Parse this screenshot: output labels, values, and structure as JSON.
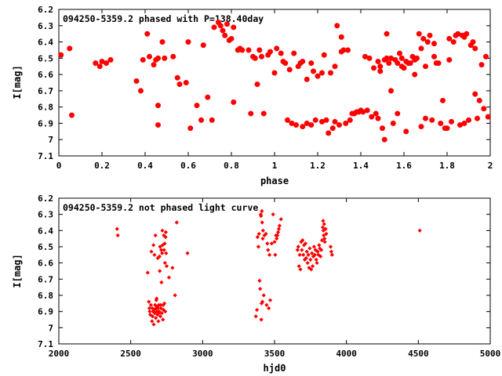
{
  "colors": {
    "points": "#ff0000",
    "axes": "#000000",
    "background": "#ffffff"
  },
  "chart_data": [
    {
      "type": "scatter",
      "title": "094250-5359.2 phased with P=138.40day",
      "xlabel": "phase",
      "ylabel": "I[mag]",
      "xlim": [
        0,
        2
      ],
      "ylim": [
        7.1,
        6.2
      ],
      "y_inverted": true,
      "grid": false,
      "marker": "star",
      "xticks": [
        "0",
        "0.2",
        "0.4",
        "0.6",
        "0.8",
        "1",
        "1.2",
        "1.4",
        "1.6",
        "1.8",
        "2"
      ],
      "yticks": [
        "6.2",
        "6.3",
        "6.4",
        "6.5",
        "6.6",
        "6.7",
        "6.8",
        "6.9",
        "7",
        "7.1"
      ],
      "points": [
        [
          0.01,
          6.48
        ],
        [
          0.05,
          6.44
        ],
        [
          0.06,
          6.85
        ],
        [
          0.17,
          6.53
        ],
        [
          0.19,
          6.55
        ],
        [
          0.2,
          6.52
        ],
        [
          0.22,
          6.53
        ],
        [
          0.24,
          6.51
        ],
        [
          0.36,
          6.64
        ],
        [
          0.38,
          6.7
        ],
        [
          0.39,
          6.51
        ],
        [
          0.41,
          6.35
        ],
        [
          0.42,
          6.49
        ],
        [
          0.44,
          6.54
        ],
        [
          0.45,
          6.51
        ],
        [
          0.46,
          6.5
        ],
        [
          0.46,
          6.79
        ],
        [
          0.46,
          6.91
        ],
        [
          0.48,
          6.4
        ],
        [
          0.49,
          6.5
        ],
        [
          0.53,
          6.49
        ],
        [
          0.55,
          6.62
        ],
        [
          0.56,
          6.66
        ],
        [
          0.59,
          6.65
        ],
        [
          0.6,
          6.4
        ],
        [
          0.61,
          6.93
        ],
        [
          0.64,
          6.79
        ],
        [
          0.66,
          6.88
        ],
        [
          0.67,
          6.42
        ],
        [
          0.69,
          6.74
        ],
        [
          0.71,
          6.88
        ],
        [
          0.72,
          6.31
        ],
        [
          0.74,
          6.28
        ],
        [
          0.75,
          6.3
        ],
        [
          0.76,
          6.33
        ],
        [
          0.77,
          6.36
        ],
        [
          0.78,
          6.29
        ],
        [
          0.79,
          6.39
        ],
        [
          0.8,
          6.38
        ],
        [
          0.81,
          6.31
        ],
        [
          0.81,
          6.77
        ],
        [
          0.83,
          6.45
        ],
        [
          0.84,
          6.44
        ],
        [
          0.85,
          6.45
        ],
        [
          0.88,
          6.45
        ],
        [
          0.89,
          6.84
        ],
        [
          0.9,
          6.49
        ],
        [
          0.91,
          6.5
        ],
        [
          0.92,
          6.66
        ],
        [
          0.93,
          6.45
        ],
        [
          0.94,
          6.49
        ],
        [
          0.95,
          6.84
        ],
        [
          0.97,
          6.48
        ],
        [
          0.98,
          6.46
        ],
        [
          1.0,
          6.59
        ],
        [
          1.01,
          6.44
        ],
        [
          1.03,
          6.47
        ],
        [
          1.04,
          6.52
        ],
        [
          1.05,
          6.53
        ],
        [
          1.06,
          6.88
        ],
        [
          1.07,
          6.57
        ],
        [
          1.08,
          6.9
        ],
        [
          1.09,
          6.47
        ],
        [
          1.1,
          6.91
        ],
        [
          1.11,
          6.55
        ],
        [
          1.12,
          6.53
        ],
        [
          1.13,
          6.52
        ],
        [
          1.13,
          6.92
        ],
        [
          1.15,
          6.9
        ],
        [
          1.15,
          6.63
        ],
        [
          1.17,
          6.53
        ],
        [
          1.17,
          6.91
        ],
        [
          1.18,
          6.58
        ],
        [
          1.19,
          6.88
        ],
        [
          1.2,
          6.61
        ],
        [
          1.22,
          6.59
        ],
        [
          1.22,
          6.89
        ],
        [
          1.23,
          6.48
        ],
        [
          1.24,
          6.88
        ],
        [
          1.25,
          6.96
        ],
        [
          1.26,
          6.59
        ],
        [
          1.27,
          6.93
        ],
        [
          1.28,
          6.55
        ],
        [
          1.28,
          6.89
        ],
        [
          1.29,
          6.3
        ],
        [
          1.3,
          6.91
        ],
        [
          1.31,
          6.46
        ],
        [
          1.31,
          6.37
        ],
        [
          1.32,
          6.45
        ],
        [
          1.33,
          6.9
        ],
        [
          1.34,
          6.45
        ],
        [
          1.35,
          6.88
        ],
        [
          1.36,
          6.84
        ],
        [
          1.37,
          6.84
        ],
        [
          1.38,
          6.83
        ],
        [
          1.39,
          6.83
        ],
        [
          1.4,
          6.82
        ],
        [
          1.41,
          6.83
        ],
        [
          1.42,
          6.49
        ],
        [
          1.43,
          6.82
        ],
        [
          1.44,
          6.5
        ],
        [
          1.45,
          6.86
        ],
        [
          1.46,
          6.56
        ],
        [
          1.47,
          6.84
        ],
        [
          1.48,
          6.52
        ],
        [
          1.48,
          6.87
        ],
        [
          1.49,
          6.55
        ],
        [
          1.49,
          6.58
        ],
        [
          1.5,
          6.93
        ],
        [
          1.51,
          7.0
        ],
        [
          1.51,
          6.51
        ],
        [
          1.52,
          6.5
        ],
        [
          1.52,
          6.35
        ],
        [
          1.53,
          6.53
        ],
        [
          1.54,
          6.5
        ],
        [
          1.54,
          6.7
        ],
        [
          1.55,
          6.9
        ],
        [
          1.56,
          6.51
        ],
        [
          1.57,
          6.84
        ],
        [
          1.57,
          6.53
        ],
        [
          1.58,
          6.47
        ],
        [
          1.59,
          6.55
        ],
        [
          1.59,
          6.5
        ],
        [
          1.6,
          6.56
        ],
        [
          1.61,
          6.95
        ],
        [
          1.61,
          6.52
        ],
        [
          1.62,
          6.53
        ],
        [
          1.63,
          6.53
        ],
        [
          1.64,
          6.49
        ],
        [
          1.65,
          6.51
        ],
        [
          1.65,
          6.6
        ],
        [
          1.66,
          6.5
        ],
        [
          1.67,
          6.35
        ],
        [
          1.68,
          6.44
        ],
        [
          1.68,
          6.92
        ],
        [
          1.69,
          6.38
        ],
        [
          1.7,
          6.55
        ],
        [
          1.7,
          6.87
        ],
        [
          1.71,
          6.4
        ],
        [
          1.72,
          6.36
        ],
        [
          1.73,
          6.88
        ],
        [
          1.74,
          6.49
        ],
        [
          1.74,
          6.41
        ],
        [
          1.75,
          6.53
        ],
        [
          1.76,
          6.53
        ],
        [
          1.77,
          6.9
        ],
        [
          1.78,
          6.76
        ],
        [
          1.79,
          6.93
        ],
        [
          1.8,
          6.93
        ],
        [
          1.81,
          6.38
        ],
        [
          1.81,
          6.51
        ],
        [
          1.82,
          6.89
        ],
        [
          1.83,
          6.4
        ],
        [
          1.84,
          6.36
        ],
        [
          1.85,
          6.35
        ],
        [
          1.86,
          6.91
        ],
        [
          1.87,
          6.36
        ],
        [
          1.88,
          6.37
        ],
        [
          1.88,
          6.9
        ],
        [
          1.89,
          6.35
        ],
        [
          1.9,
          6.88
        ],
        [
          1.91,
          6.42
        ],
        [
          1.92,
          6.4
        ],
        [
          1.93,
          6.44
        ],
        [
          1.93,
          6.72
        ],
        [
          1.94,
          6.87
        ],
        [
          1.95,
          6.76
        ],
        [
          1.96,
          6.54
        ],
        [
          1.97,
          6.81
        ],
        [
          1.98,
          6.49
        ],
        [
          1.99,
          6.86
        ]
      ]
    },
    {
      "type": "scatter",
      "title": "094250-5359.2 not phased light curve",
      "xlabel": "hjd0",
      "ylabel": "I[mag]",
      "xlim": [
        2000,
        5000
      ],
      "ylim": [
        7.1,
        6.2
      ],
      "y_inverted": true,
      "grid": false,
      "marker": "diamond",
      "xticks": [
        "2000",
        "2500",
        "3000",
        "3500",
        "4000",
        "4500",
        "5000"
      ],
      "yticks": [
        "6.2",
        "6.3",
        "6.4",
        "6.5",
        "6.6",
        "6.7",
        "6.8",
        "6.9",
        "7",
        "7.1"
      ],
      "points": [
        [
          2405,
          6.39
        ],
        [
          2410,
          6.43
        ],
        [
          2618,
          6.66
        ],
        [
          2626,
          6.84
        ],
        [
          2630,
          6.88
        ],
        [
          2632,
          6.9
        ],
        [
          2636,
          6.92
        ],
        [
          2640,
          6.86
        ],
        [
          2644,
          6.53
        ],
        [
          2648,
          6.96
        ],
        [
          2650,
          6.88
        ],
        [
          2652,
          6.93
        ],
        [
          2655,
          6.9
        ],
        [
          2658,
          6.49
        ],
        [
          2660,
          6.98
        ],
        [
          2662,
          6.89
        ],
        [
          2665,
          6.55
        ],
        [
          2667,
          6.91
        ],
        [
          2670,
          6.86
        ],
        [
          2672,
          6.43
        ],
        [
          2674,
          6.94
        ],
        [
          2676,
          6.88
        ],
        [
          2678,
          6.83
        ],
        [
          2680,
          6.82
        ],
        [
          2682,
          6.9
        ],
        [
          2684,
          6.87
        ],
        [
          2686,
          6.92
        ],
        [
          2688,
          6.57
        ],
        [
          2690,
          6.88
        ],
        [
          2692,
          6.96
        ],
        [
          2694,
          6.91
        ],
        [
          2696,
          6.86
        ],
        [
          2698,
          6.9
        ],
        [
          2700,
          6.56
        ],
        [
          2702,
          6.65
        ],
        [
          2704,
          6.5
        ],
        [
          2706,
          6.93
        ],
        [
          2708,
          6.86
        ],
        [
          2710,
          6.88
        ],
        [
          2712,
          6.52
        ],
        [
          2714,
          6.72
        ],
        [
          2716,
          6.91
        ],
        [
          2718,
          6.54
        ],
        [
          2720,
          6.4
        ],
        [
          2722,
          6.49
        ],
        [
          2724,
          6.95
        ],
        [
          2726,
          6.86
        ],
        [
          2728,
          6.89
        ],
        [
          2730,
          6.43
        ],
        [
          2732,
          6.52
        ],
        [
          2734,
          6.85
        ],
        [
          2736,
          6.48
        ],
        [
          2738,
          6.6
        ],
        [
          2740,
          6.9
        ],
        [
          2742,
          6.44
        ],
        [
          2744,
          6.41
        ],
        [
          2746,
          6.54
        ],
        [
          2750,
          6.62
        ],
        [
          2766,
          6.69
        ],
        [
          2790,
          6.63
        ],
        [
          2808,
          6.8
        ],
        [
          2820,
          6.35
        ],
        [
          2895,
          6.54
        ],
        [
          3370,
          6.93
        ],
        [
          3378,
          6.89
        ],
        [
          3382,
          6.44
        ],
        [
          3388,
          6.5
        ],
        [
          3392,
          6.42
        ],
        [
          3396,
          6.71
        ],
        [
          3400,
          6.76
        ],
        [
          3404,
          6.3
        ],
        [
          3406,
          6.31
        ],
        [
          3408,
          6.95
        ],
        [
          3410,
          6.85
        ],
        [
          3412,
          6.28
        ],
        [
          3414,
          6.35
        ],
        [
          3416,
          6.84
        ],
        [
          3418,
          6.45
        ],
        [
          3420,
          6.4
        ],
        [
          3425,
          6.8
        ],
        [
          3430,
          6.43
        ],
        [
          3440,
          6.42
        ],
        [
          3445,
          6.86
        ],
        [
          3450,
          6.48
        ],
        [
          3455,
          6.52
        ],
        [
          3460,
          6.88
        ],
        [
          3465,
          6.55
        ],
        [
          3470,
          6.83
        ],
        [
          3480,
          6.48
        ],
        [
          3490,
          6.3
        ],
        [
          3500,
          6.47
        ],
        [
          3505,
          6.55
        ],
        [
          3510,
          6.43
        ],
        [
          3515,
          6.45
        ],
        [
          3520,
          6.43
        ],
        [
          3525,
          6.41
        ],
        [
          3530,
          6.39
        ],
        [
          3535,
          6.37
        ],
        [
          3545,
          6.33
        ],
        [
          3660,
          6.52
        ],
        [
          3665,
          6.5
        ],
        [
          3670,
          6.62
        ],
        [
          3675,
          6.55
        ],
        [
          3680,
          6.64
        ],
        [
          3685,
          6.47
        ],
        [
          3690,
          6.52
        ],
        [
          3695,
          6.46
        ],
        [
          3700,
          6.55
        ],
        [
          3705,
          6.49
        ],
        [
          3710,
          6.58
        ],
        [
          3715,
          6.48
        ],
        [
          3720,
          6.57
        ],
        [
          3725,
          6.53
        ],
        [
          3730,
          6.6
        ],
        [
          3735,
          6.55
        ],
        [
          3740,
          6.63
        ],
        [
          3745,
          6.51
        ],
        [
          3750,
          6.58
        ],
        [
          3755,
          6.64
        ],
        [
          3760,
          6.54
        ],
        [
          3765,
          6.62
        ],
        [
          3770,
          6.56
        ],
        [
          3775,
          6.5
        ],
        [
          3780,
          6.55
        ],
        [
          3785,
          6.52
        ],
        [
          3790,
          6.58
        ],
        [
          3795,
          6.6
        ],
        [
          3800,
          6.53
        ],
        [
          3805,
          6.55
        ],
        [
          3810,
          6.49
        ],
        [
          3815,
          6.51
        ],
        [
          3820,
          6.56
        ],
        [
          3825,
          6.52
        ],
        [
          3830,
          6.46
        ],
        [
          3835,
          6.38
        ],
        [
          3838,
          6.34
        ],
        [
          3840,
          6.4
        ],
        [
          3842,
          6.43
        ],
        [
          3845,
          6.36
        ],
        [
          3848,
          6.45
        ],
        [
          3850,
          6.47
        ],
        [
          3855,
          6.39
        ],
        [
          3860,
          6.42
        ],
        [
          3890,
          6.5
        ],
        [
          3895,
          6.53
        ],
        [
          3900,
          6.55
        ],
        [
          4510,
          6.4
        ]
      ]
    }
  ]
}
